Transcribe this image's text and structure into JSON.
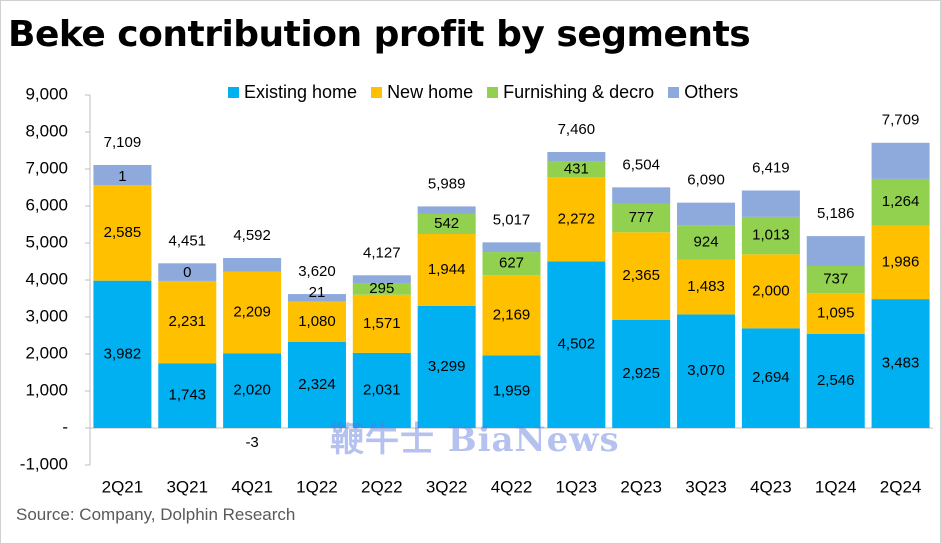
{
  "title": "Beke contribution profit by segments",
  "source": "Source: Company, Dolphin Research",
  "watermark": "鞭牛士 BiaNews",
  "colors": {
    "existing": "#00b0f0",
    "new": "#ffc000",
    "furnishing": "#92d050",
    "others": "#8ea9db"
  },
  "chart_data": {
    "type": "bar",
    "stacked": true,
    "categories": [
      "2Q21",
      "3Q21",
      "4Q21",
      "1Q22",
      "2Q22",
      "3Q22",
      "4Q22",
      "1Q23",
      "2Q23",
      "3Q23",
      "4Q23",
      "1Q24",
      "2Q24"
    ],
    "series": [
      {
        "name": "Existing home",
        "color": "#00b0f0",
        "values": [
          3982,
          1743,
          2020,
          2324,
          2031,
          3299,
          1959,
          4502,
          2925,
          3070,
          2694,
          2546,
          3483
        ],
        "labels": [
          "3,982",
          "1,743",
          "2,020",
          "2,324",
          "2,031",
          "3,299",
          "1,959",
          "4,502",
          "2,925",
          "3,070",
          "2,694",
          "2,546",
          "3,483"
        ]
      },
      {
        "name": "New home",
        "color": "#ffc000",
        "values": [
          2585,
          2231,
          2209,
          1080,
          1571,
          1944,
          2169,
          2272,
          2365,
          1483,
          2000,
          1095,
          1986
        ],
        "labels": [
          "2,585",
          "2,231",
          "2,209",
          "1,080",
          "1,571",
          "1,944",
          "2,169",
          "2,272",
          "2,365",
          "1,483",
          "2,000",
          "1,095",
          "1,986"
        ]
      },
      {
        "name": "Furnishing & decro",
        "color": "#92d050",
        "values": [
          1,
          0,
          -3,
          21,
          295,
          542,
          627,
          431,
          777,
          924,
          1013,
          737,
          1264
        ],
        "labels": [
          "1",
          "0",
          "-3",
          "21",
          "295",
          "542",
          "627",
          "431",
          "777",
          "924",
          "1,013",
          "737",
          "1,264"
        ]
      },
      {
        "name": "Others",
        "color": "#8ea9db",
        "values": [
          541,
          477,
          366,
          195,
          230,
          204,
          262,
          255,
          437,
          613,
          712,
          808,
          976
        ]
      }
    ],
    "totals": [
      7109,
      4451,
      4592,
      3620,
      4127,
      5989,
      5017,
      7460,
      6504,
      6090,
      6419,
      5186,
      7709
    ],
    "total_labels": [
      "7,109",
      "4,451",
      "4,592",
      "3,620",
      "4,127",
      "5,989",
      "5,017",
      "7,460",
      "6,504",
      "6,090",
      "6,419",
      "5,186",
      "7,709"
    ],
    "ylim": [
      -1000,
      9000
    ],
    "yticks": [
      9000,
      8000,
      7000,
      6000,
      5000,
      4000,
      3000,
      2000,
      1000,
      0,
      -1000
    ],
    "ytick_labels": [
      "9,000",
      "8,000",
      "7,000",
      "6,000",
      "5,000",
      "4,000",
      "3,000",
      "2,000",
      "1,000",
      "-",
      "-1,000"
    ],
    "legend_position": "top",
    "grid": false
  }
}
